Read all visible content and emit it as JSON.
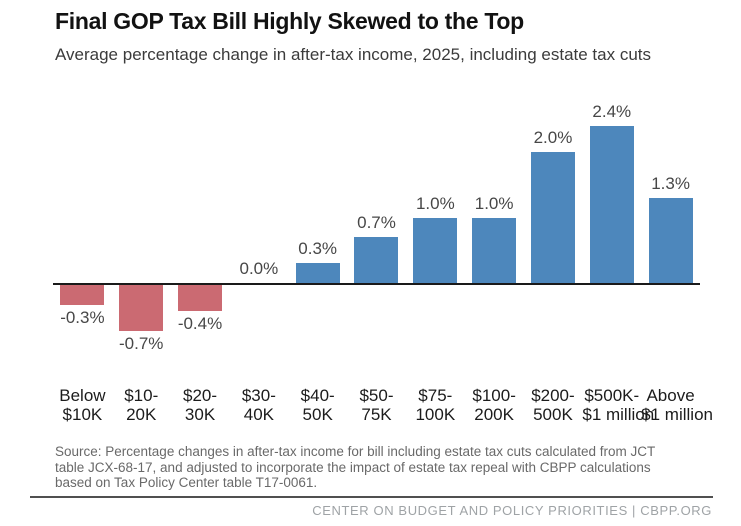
{
  "header": {
    "title": "Final GOP Tax Bill Highly Skewed to the Top",
    "subtitle": "Average percentage change in after-tax income, 2025, including estate tax cuts"
  },
  "chart_data": {
    "type": "bar",
    "title": "Final GOP Tax Bill Highly Skewed to the Top",
    "subtitle": "Average percentage change in after-tax income, 2025, including estate tax cuts",
    "unit": "%",
    "categories": [
      "Below $10K",
      "$10-20K",
      "$20-30K",
      "$30-40K",
      "$40-50K",
      "$50-75K",
      "$75-100K",
      "$100-200K",
      "$200-500K",
      "$500K-$1 million",
      "Above $1 million"
    ],
    "category_label_lines": [
      [
        "Below",
        "$10K"
      ],
      [
        "$10-",
        "20K"
      ],
      [
        "$20-",
        "30K"
      ],
      [
        "$30-",
        "40K"
      ],
      [
        "$40-",
        "50K"
      ],
      [
        "$50-",
        "75K"
      ],
      [
        "$75-",
        "100K"
      ],
      [
        "$100-",
        "200K"
      ],
      [
        "$200-",
        "500K"
      ],
      [
        "$500K-",
        "$1 million"
      ],
      [
        "Above",
        "$1 million"
      ]
    ],
    "values": [
      -0.3,
      -0.7,
      -0.4,
      0.0,
      0.3,
      0.7,
      1.0,
      1.0,
      2.0,
      2.4,
      1.3
    ],
    "value_labels": [
      "-0.3%",
      "-0.7%",
      "-0.4%",
      "0.0%",
      "0.3%",
      "0.7%",
      "1.0%",
      "1.0%",
      "2.0%",
      "2.4%",
      "1.3%"
    ],
    "xlabel": "",
    "ylabel": "",
    "ylim": [
      -0.9,
      2.7
    ],
    "grid": false,
    "legend": "none",
    "colors": {
      "positive": "#4d87bc",
      "negative": "#cb6a72",
      "axis_line": "#1a1a1a"
    }
  },
  "footer": {
    "source_lines": [
      "Source: Percentage changes in after-tax income for bill including estate tax cuts calculated from JCT",
      "table JCX-68-17, and adjusted to incorporate the impact of estate tax repeal with CBPP calculations",
      "based on Tax Policy Center table T17-0061."
    ],
    "brand": "CENTER ON BUDGET AND POLICY PRIORITIES | CBPP.ORG"
  }
}
